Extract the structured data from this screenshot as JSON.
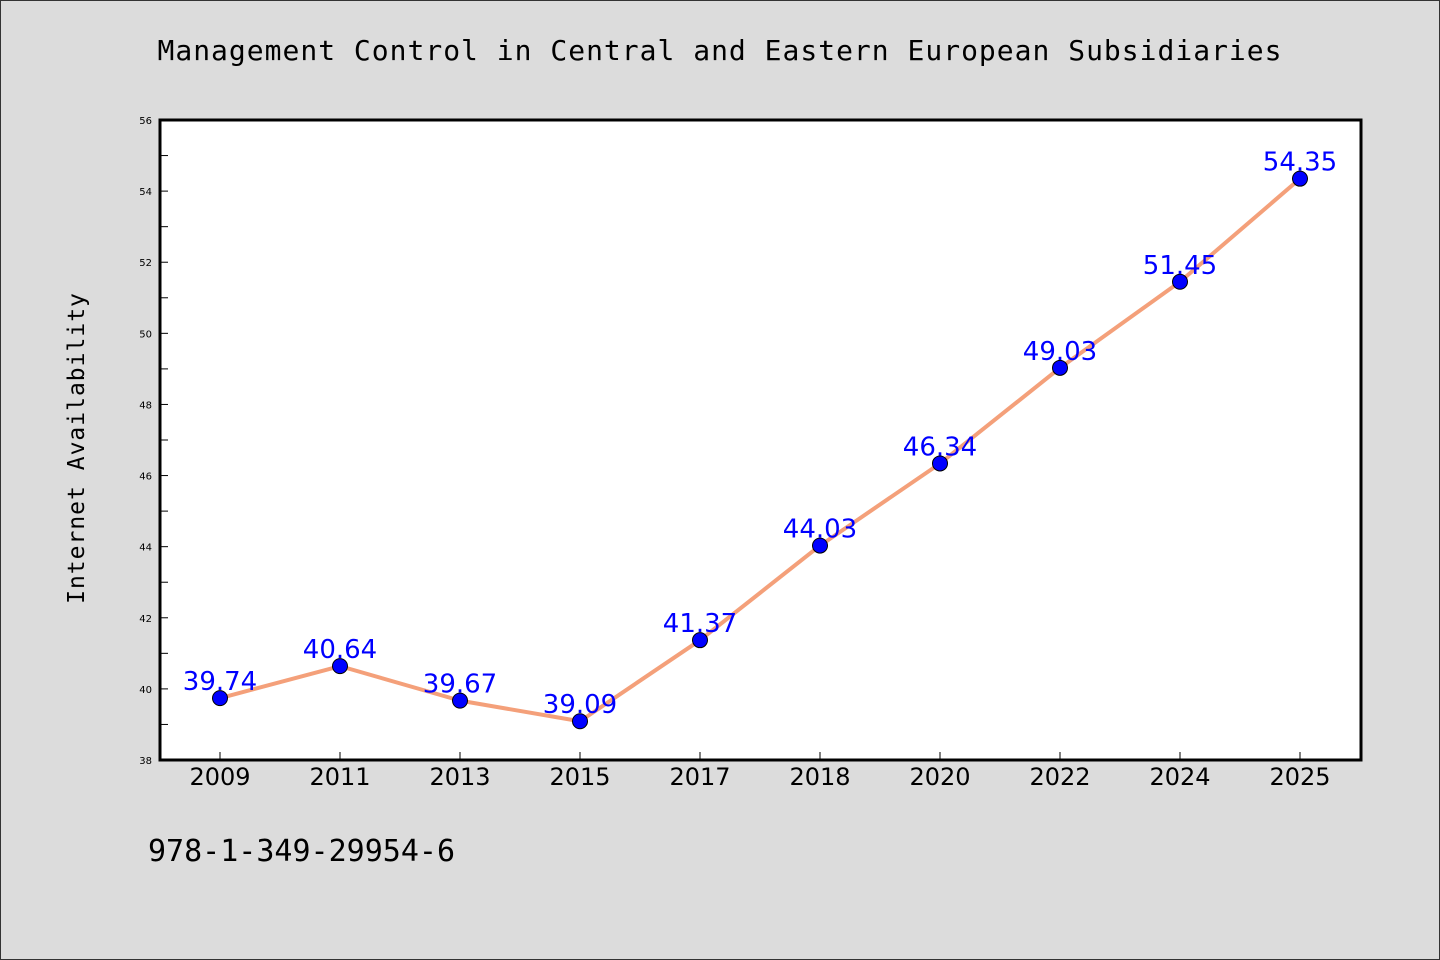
{
  "chart_data": {
    "type": "line",
    "title": "Management Control in Central and Eastern European Subsidiaries",
    "ylabel": "Internet Availability",
    "categories": [
      "2009",
      "2011",
      "2013",
      "2015",
      "2017",
      "2018",
      "2020",
      "2022",
      "2024",
      "2025"
    ],
    "series": [
      {
        "values": [
          39.74,
          40.64,
          39.67,
          39.09,
          41.37,
          44.03,
          46.34,
          49.03,
          51.45,
          54.35
        ],
        "data_labels": [
          "39.74",
          "40.64",
          "39.67",
          "39.09",
          "41.37",
          "44.03",
          "46.34",
          "49.03",
          "51.45",
          "54.35"
        ],
        "line_color": "#f4a07a",
        "marker_color": "#0000ff"
      }
    ],
    "ylim": [
      38,
      56
    ],
    "yticks": [
      "38",
      "40",
      "42",
      "44",
      "46",
      "48",
      "50",
      "52",
      "54",
      "56"
    ],
    "grid": false,
    "legend": "none",
    "background_color": "#dcdcdc",
    "plot_background_color": "#ffffff"
  },
  "footer_text": "978-1-349-29954-6"
}
